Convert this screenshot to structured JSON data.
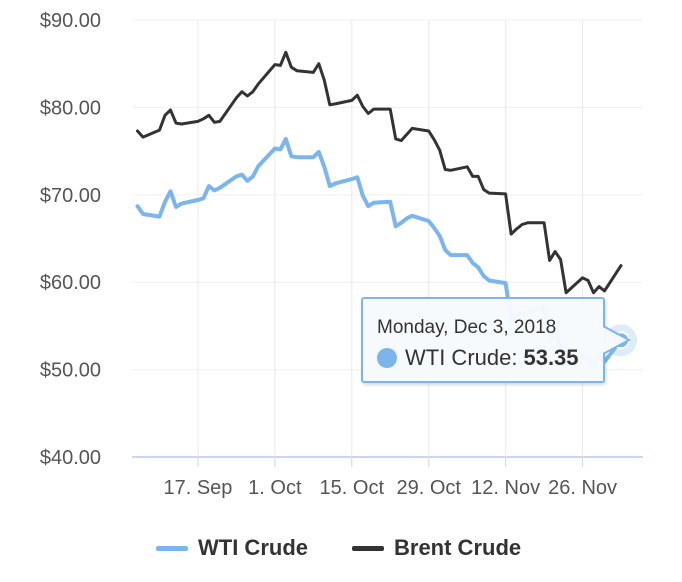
{
  "chart_data": {
    "type": "line",
    "ylim": [
      40,
      90
    ],
    "yticks": [
      {
        "value": 40,
        "label": "$40.00"
      },
      {
        "value": 50,
        "label": "$50.00"
      },
      {
        "value": 60,
        "label": "$60.00"
      },
      {
        "value": 70,
        "label": "$70.00"
      },
      {
        "value": 80,
        "label": "$80.00"
      },
      {
        "value": 90,
        "label": "$90.00"
      }
    ],
    "xlim": [
      "2018-09-05",
      "2018-12-07"
    ],
    "xticks": [
      {
        "value": "2018-09-17",
        "label": "17. Sep"
      },
      {
        "value": "2018-10-01",
        "label": "1. Oct"
      },
      {
        "value": "2018-10-15",
        "label": "15. Oct"
      },
      {
        "value": "2018-10-29",
        "label": "29. Oct"
      },
      {
        "value": "2018-11-12",
        "label": "12. Nov"
      },
      {
        "value": "2018-11-26",
        "label": "26. Nov"
      }
    ],
    "grid": "vertical",
    "legend_position": "bottom",
    "series": [
      {
        "name": "WTI Crude",
        "color": "#7cb5ec",
        "points": [
          [
            "2018-09-06",
            68.7
          ],
          [
            "2018-09-07",
            67.8
          ],
          [
            "2018-09-10",
            67.5
          ],
          [
            "2018-09-11",
            69.2
          ],
          [
            "2018-09-12",
            70.4
          ],
          [
            "2018-09-13",
            68.6
          ],
          [
            "2018-09-14",
            68.99
          ],
          [
            "2018-09-17",
            69.4
          ],
          [
            "2018-09-18",
            69.6
          ],
          [
            "2018-09-19",
            71.0
          ],
          [
            "2018-09-20",
            70.5
          ],
          [
            "2018-09-21",
            70.8
          ],
          [
            "2018-09-24",
            72.1
          ],
          [
            "2018-09-25",
            72.3
          ],
          [
            "2018-09-26",
            71.6
          ],
          [
            "2018-09-27",
            72.1
          ],
          [
            "2018-09-28",
            73.3
          ],
          [
            "2018-10-01",
            75.3
          ],
          [
            "2018-10-02",
            75.2
          ],
          [
            "2018-10-03",
            76.4
          ],
          [
            "2018-10-04",
            74.4
          ],
          [
            "2018-10-05",
            74.3
          ],
          [
            "2018-10-08",
            74.3
          ],
          [
            "2018-10-09",
            74.9
          ],
          [
            "2018-10-10",
            73.2
          ],
          [
            "2018-10-11",
            71.0
          ],
          [
            "2018-10-12",
            71.3
          ],
          [
            "2018-10-15",
            71.8
          ],
          [
            "2018-10-16",
            72.0
          ],
          [
            "2018-10-17",
            69.9
          ],
          [
            "2018-10-18",
            68.7
          ],
          [
            "2018-10-19",
            69.1
          ],
          [
            "2018-10-22",
            69.2
          ],
          [
            "2018-10-23",
            66.4
          ],
          [
            "2018-10-24",
            66.8
          ],
          [
            "2018-10-25",
            67.3
          ],
          [
            "2018-10-26",
            67.6
          ],
          [
            "2018-10-29",
            67.0
          ],
          [
            "2018-10-30",
            66.2
          ],
          [
            "2018-10-31",
            65.3
          ],
          [
            "2018-11-01",
            63.7
          ],
          [
            "2018-11-02",
            63.1
          ],
          [
            "2018-11-05",
            63.1
          ],
          [
            "2018-11-06",
            62.2
          ],
          [
            "2018-11-07",
            61.7
          ],
          [
            "2018-11-08",
            60.7
          ],
          [
            "2018-11-09",
            60.2
          ],
          [
            "2018-11-12",
            59.9
          ],
          [
            "2018-11-13",
            55.7
          ],
          [
            "2018-11-14",
            56.3
          ],
          [
            "2018-11-15",
            56.5
          ],
          [
            "2018-11-16",
            56.5
          ],
          [
            "2018-11-19",
            57.2
          ],
          [
            "2018-11-20",
            53.4
          ],
          [
            "2018-11-21",
            54.6
          ],
          [
            "2018-11-23",
            50.4
          ],
          [
            "2018-11-26",
            51.6
          ],
          [
            "2018-11-27",
            51.6
          ],
          [
            "2018-11-28",
            50.3
          ],
          [
            "2018-11-29",
            51.5
          ],
          [
            "2018-11-30",
            50.9
          ],
          [
            "2018-12-03",
            53.35
          ]
        ]
      },
      {
        "name": "Brent Crude",
        "color": "#333333",
        "points": [
          [
            "2018-09-06",
            77.3
          ],
          [
            "2018-09-07",
            76.6
          ],
          [
            "2018-09-10",
            77.4
          ],
          [
            "2018-09-11",
            79.1
          ],
          [
            "2018-09-12",
            79.7
          ],
          [
            "2018-09-13",
            78.2
          ],
          [
            "2018-09-14",
            78.1
          ],
          [
            "2018-09-17",
            78.4
          ],
          [
            "2018-09-18",
            78.7
          ],
          [
            "2018-09-19",
            79.1
          ],
          [
            "2018-09-20",
            78.3
          ],
          [
            "2018-09-21",
            78.4
          ],
          [
            "2018-09-24",
            81.1
          ],
          [
            "2018-09-25",
            81.8
          ],
          [
            "2018-09-26",
            81.3
          ],
          [
            "2018-09-27",
            81.8
          ],
          [
            "2018-09-28",
            82.7
          ],
          [
            "2018-10-01",
            84.9
          ],
          [
            "2018-10-02",
            84.8
          ],
          [
            "2018-10-03",
            86.3
          ],
          [
            "2018-10-04",
            84.6
          ],
          [
            "2018-10-05",
            84.2
          ],
          [
            "2018-10-08",
            84.0
          ],
          [
            "2018-10-09",
            85.0
          ],
          [
            "2018-10-10",
            83.1
          ],
          [
            "2018-10-11",
            80.3
          ],
          [
            "2018-10-12",
            80.4
          ],
          [
            "2018-10-15",
            80.8
          ],
          [
            "2018-10-16",
            81.4
          ],
          [
            "2018-10-17",
            80.1
          ],
          [
            "2018-10-18",
            79.3
          ],
          [
            "2018-10-19",
            79.8
          ],
          [
            "2018-10-22",
            79.8
          ],
          [
            "2018-10-23",
            76.4
          ],
          [
            "2018-10-24",
            76.2
          ],
          [
            "2018-10-25",
            76.9
          ],
          [
            "2018-10-26",
            77.6
          ],
          [
            "2018-10-29",
            77.3
          ],
          [
            "2018-10-30",
            76.3
          ],
          [
            "2018-10-31",
            75.1
          ],
          [
            "2018-11-01",
            72.9
          ],
          [
            "2018-11-02",
            72.8
          ],
          [
            "2018-11-05",
            73.2
          ],
          [
            "2018-11-06",
            72.1
          ],
          [
            "2018-11-07",
            72.1
          ],
          [
            "2018-11-08",
            70.6
          ],
          [
            "2018-11-09",
            70.2
          ],
          [
            "2018-11-12",
            70.1
          ],
          [
            "2018-11-13",
            65.5
          ],
          [
            "2018-11-14",
            66.1
          ],
          [
            "2018-11-15",
            66.6
          ],
          [
            "2018-11-16",
            66.8
          ],
          [
            "2018-11-19",
            66.8
          ],
          [
            "2018-11-20",
            62.5
          ],
          [
            "2018-11-21",
            63.5
          ],
          [
            "2018-11-22",
            62.6
          ],
          [
            "2018-11-23",
            58.8
          ],
          [
            "2018-11-26",
            60.5
          ],
          [
            "2018-11-27",
            60.2
          ],
          [
            "2018-11-28",
            58.8
          ],
          [
            "2018-11-29",
            59.5
          ],
          [
            "2018-11-30",
            59.0
          ],
          [
            "2018-12-03",
            61.9
          ]
        ]
      }
    ]
  },
  "tooltip": {
    "date": "Monday, Dec 3, 2018",
    "series_label": "WTI Crude:",
    "value": "53.35",
    "color": "#7cb5ec"
  },
  "legend": [
    {
      "label": "WTI Crude",
      "color": "#7cb5ec"
    },
    {
      "label": "Brent Crude",
      "color": "#333333"
    }
  ]
}
